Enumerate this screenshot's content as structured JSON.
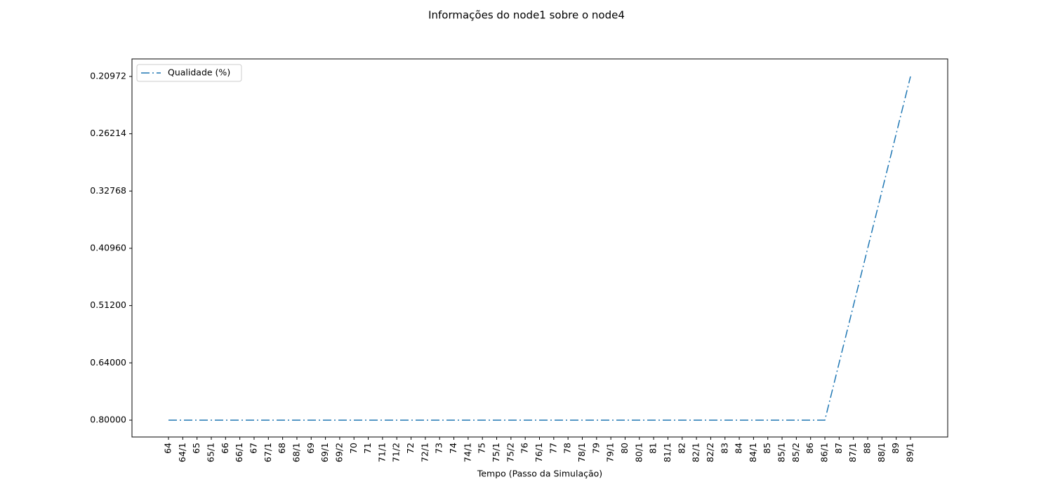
{
  "chart_data": {
    "type": "line",
    "title": "Informações do node1 sobre o node4",
    "x_label": "Tempo (Passo da Simulação)",
    "categories": [
      "64",
      "64/1",
      "65",
      "65/1",
      "66",
      "66/1",
      "67",
      "67/1",
      "68",
      "68/1",
      "69",
      "69/1",
      "69/2",
      "70",
      "71",
      "71/1",
      "71/2",
      "72",
      "72/1",
      "73",
      "74",
      "74/1",
      "75",
      "75/1",
      "75/2",
      "76",
      "76/1",
      "77",
      "78",
      "78/1",
      "79",
      "79/1",
      "80",
      "80/1",
      "81",
      "81/1",
      "82",
      "82/1",
      "82/2",
      "83",
      "84",
      "84/1",
      "85",
      "85/1",
      "85/2",
      "86",
      "86/1",
      "87",
      "87/1",
      "88",
      "88/1",
      "89",
      "89/1"
    ],
    "series": [
      {
        "name": "Qualidade (%)",
        "color": "#1f77b4",
        "linestyle": "dashdot",
        "values": [
          0.8,
          0.8,
          0.8,
          0.8,
          0.8,
          0.8,
          0.8,
          0.8,
          0.8,
          0.8,
          0.8,
          0.8,
          0.8,
          0.8,
          0.8,
          0.8,
          0.8,
          0.8,
          0.8,
          0.8,
          0.8,
          0.8,
          0.8,
          0.8,
          0.8,
          0.8,
          0.8,
          0.8,
          0.8,
          0.8,
          0.8,
          0.8,
          0.8,
          0.8,
          0.8,
          0.8,
          0.8,
          0.8,
          0.8,
          0.8,
          0.8,
          0.8,
          0.8,
          0.8,
          0.8,
          0.8,
          0.8,
          0.64,
          0.512,
          0.4096,
          0.32768,
          0.26214,
          0.20972
        ]
      }
    ],
    "yscale": "categorical",
    "yticks": [
      {
        "value": 0.8,
        "label": "0.80000"
      },
      {
        "value": 0.64,
        "label": "0.64000"
      },
      {
        "value": 0.512,
        "label": "0.51200"
      },
      {
        "value": 0.4096,
        "label": "0.40960"
      },
      {
        "value": 0.32768,
        "label": "0.32768"
      },
      {
        "value": 0.26214,
        "label": "0.26214"
      },
      {
        "value": 0.20972,
        "label": "0.20972"
      }
    ],
    "grid": false,
    "legend": "upper left"
  }
}
